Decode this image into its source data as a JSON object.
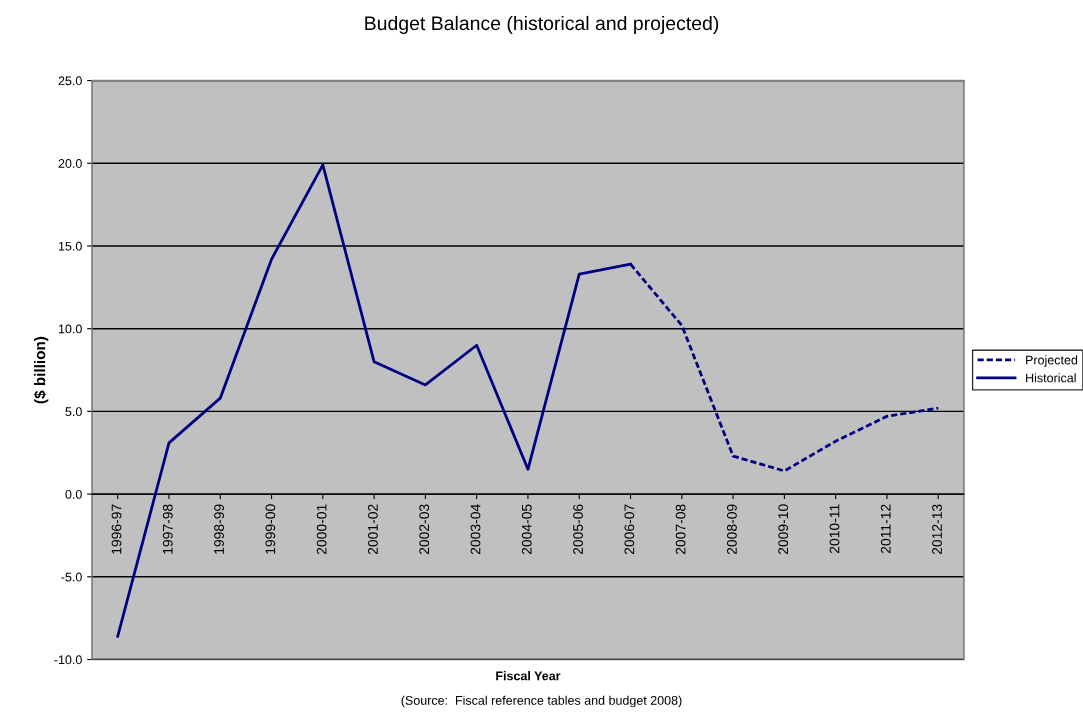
{
  "chart_data": {
    "type": "line",
    "title": "Budget Balance (historical and projected)",
    "xlabel": "Fiscal Year",
    "ylabel": "($ billion)",
    "annotations": [
      "(Source:  Fiscal reference tables and budget 2008)"
    ],
    "categories": [
      "1996-97",
      "1997-98",
      "1998-99",
      "1999-00",
      "2000-01",
      "2001-02",
      "2002-03",
      "2003-04",
      "2004-05",
      "2005-06",
      "2006-07",
      "2007-08",
      "2008-09",
      "2009-10",
      "2010-11",
      "2011-12",
      "2012-13"
    ],
    "series": [
      {
        "name": "Projected",
        "color": "#000080",
        "line_style": "dashed",
        "values": [
          null,
          null,
          null,
          null,
          null,
          null,
          null,
          null,
          null,
          null,
          13.9,
          10.2,
          2.3,
          1.4,
          3.2,
          4.7,
          5.2
        ]
      },
      {
        "name": "Historical",
        "color": "#000080",
        "line_style": "solid",
        "values": [
          -8.6,
          3.1,
          5.8,
          14.2,
          19.9,
          8.0,
          6.6,
          9.0,
          1.5,
          13.3,
          13.9,
          null,
          null,
          null,
          null,
          null,
          null
        ]
      }
    ],
    "ylim": [
      -10,
      25
    ],
    "yticks": [
      {
        "value": -10,
        "label": "-10.0"
      },
      {
        "value": -5,
        "label": "-5.0"
      },
      {
        "value": 0,
        "label": "0.0"
      },
      {
        "value": 5,
        "label": "5.0"
      },
      {
        "value": 10,
        "label": "10.0"
      },
      {
        "value": 15,
        "label": "15.0"
      },
      {
        "value": 20,
        "label": "20.0"
      },
      {
        "value": 25,
        "label": "25.0"
      }
    ],
    "grid": "y",
    "legend": "right",
    "marker": "none"
  }
}
